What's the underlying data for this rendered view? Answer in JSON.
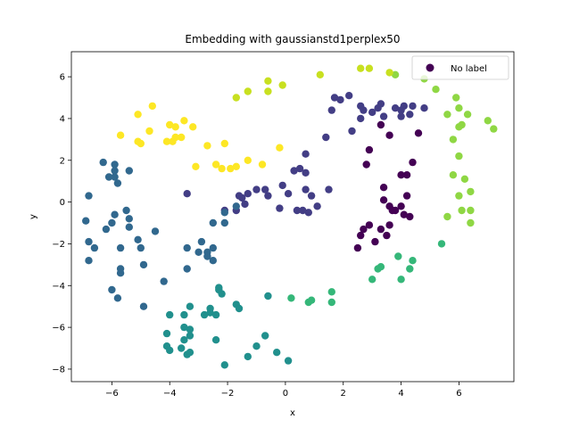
{
  "chart_data": {
    "type": "scatter",
    "title": "Embedding with gaussianstd1perplex50",
    "xlabel": "x",
    "ylabel": "y",
    "xlim": [
      -7.4,
      7.9
    ],
    "ylim": [
      -8.6,
      7.2
    ],
    "xticks": [
      -6,
      -4,
      -2,
      0,
      2,
      4,
      6
    ],
    "yticks": [
      -8,
      -6,
      -4,
      -2,
      0,
      2,
      4,
      6
    ],
    "tick_labels_x": [
      "−6",
      "−4",
      "−2",
      "0",
      "2",
      "4",
      "6"
    ],
    "tick_labels_y": [
      "−8",
      "−6",
      "−4",
      "−2",
      "0",
      "2",
      "4",
      "6"
    ],
    "grid": false,
    "legend": {
      "placement": "top-right",
      "entries": [
        "No label"
      ],
      "color": "#440154"
    },
    "colormap": "viridis",
    "series": [
      {
        "color": "#440154",
        "points": [
          [
            2.7,
            -1.3
          ],
          [
            3.1,
            -1.9
          ],
          [
            2.5,
            -2.2
          ],
          [
            2.9,
            -1.1
          ],
          [
            2.6,
            -1.6
          ],
          [
            3.3,
            -1.3
          ],
          [
            3.6,
            -1.1
          ],
          [
            3.5,
            -1.6
          ],
          [
            4.1,
            -0.6
          ],
          [
            4.3,
            -0.7
          ],
          [
            4.0,
            -0.2
          ],
          [
            4.2,
            0.3
          ],
          [
            3.8,
            -0.4
          ],
          [
            3.4,
            0.1
          ],
          [
            3.6,
            -0.2
          ],
          [
            3.7,
            -0.4
          ],
          [
            4.4,
            1.9
          ],
          [
            4.2,
            1.3
          ],
          [
            4.0,
            1.3
          ],
          [
            3.4,
            0.7
          ],
          [
            3.6,
            3.2
          ],
          [
            2.8,
            1.8
          ],
          [
            3.3,
            3.7
          ],
          [
            2.9,
            2.5
          ],
          [
            4.6,
            3.3
          ]
        ]
      },
      {
        "color": "#433e85",
        "points": [
          [
            1.7,
            5.0
          ],
          [
            1.9,
            4.9
          ],
          [
            1.6,
            4.4
          ],
          [
            2.2,
            5.1
          ],
          [
            2.6,
            4.6
          ],
          [
            2.7,
            4.4
          ],
          [
            2.6,
            4.0
          ],
          [
            3.0,
            4.3
          ],
          [
            3.3,
            4.7
          ],
          [
            3.2,
            4.5
          ],
          [
            3.4,
            4.1
          ],
          [
            3.8,
            4.5
          ],
          [
            4.1,
            4.6
          ],
          [
            4.0,
            4.4
          ],
          [
            4.3,
            4.2
          ],
          [
            4.0,
            4.1
          ],
          [
            4.4,
            4.6
          ],
          [
            4.8,
            4.5
          ],
          [
            2.3,
            3.4
          ],
          [
            1.4,
            3.1
          ],
          [
            0.7,
            2.3
          ],
          [
            0.5,
            1.6
          ],
          [
            0.3,
            1.5
          ],
          [
            0.7,
            1.4
          ],
          [
            0.7,
            0.6
          ],
          [
            0.9,
            0.3
          ],
          [
            0.6,
            -0.4
          ],
          [
            0.8,
            -0.5
          ],
          [
            1.1,
            -0.2
          ],
          [
            1.5,
            0.6
          ],
          [
            0.4,
            -0.4
          ],
          [
            0.1,
            0.4
          ],
          [
            -0.1,
            0.8
          ],
          [
            -0.2,
            -0.3
          ],
          [
            -0.6,
            0.3
          ],
          [
            -0.7,
            0.6
          ],
          [
            -1.0,
            0.6
          ],
          [
            -1.3,
            0.4
          ],
          [
            -1.5,
            0.2
          ],
          [
            -1.6,
            0.3
          ],
          [
            -1.4,
            -0.1
          ],
          [
            -1.7,
            -0.4
          ],
          [
            -2.1,
            -0.4
          ],
          [
            -3.4,
            0.4
          ]
        ]
      },
      {
        "color": "#31688e",
        "points": [
          [
            -6.3,
            1.9
          ],
          [
            -5.9,
            1.8
          ],
          [
            -5.9,
            1.5
          ],
          [
            -6.1,
            1.2
          ],
          [
            -5.8,
            0.9
          ],
          [
            -5.4,
            1.5
          ],
          [
            -5.9,
            1.2
          ],
          [
            -6.8,
            0.3
          ],
          [
            -6.9,
            -0.9
          ],
          [
            -6.8,
            -1.9
          ],
          [
            -6.6,
            -2.2
          ],
          [
            -6.8,
            -2.8
          ],
          [
            -6.2,
            -1.3
          ],
          [
            -6.0,
            -1.0
          ],
          [
            -5.9,
            -0.6
          ],
          [
            -5.5,
            -0.4
          ],
          [
            -5.4,
            -0.8
          ],
          [
            -5.4,
            -1.2
          ],
          [
            -5.7,
            -2.2
          ],
          [
            -5.1,
            -1.8
          ],
          [
            -4.5,
            -1.4
          ],
          [
            -5.0,
            -2.2
          ],
          [
            -4.9,
            -3.0
          ],
          [
            -5.7,
            -3.2
          ],
          [
            -5.7,
            -3.4
          ],
          [
            -6.0,
            -4.2
          ],
          [
            -5.8,
            -4.6
          ],
          [
            -4.9,
            -5.0
          ],
          [
            -4.2,
            -3.8
          ],
          [
            -3.4,
            -3.2
          ],
          [
            -3.4,
            -2.2
          ],
          [
            -3.0,
            -2.4
          ],
          [
            -2.9,
            -1.9
          ],
          [
            -2.7,
            -2.4
          ],
          [
            -2.7,
            -2.6
          ],
          [
            -2.5,
            -2.2
          ],
          [
            -2.5,
            -2.8
          ],
          [
            -2.5,
            -1.0
          ],
          [
            -2.1,
            -1.0
          ],
          [
            -2.1,
            -0.5
          ],
          [
            -1.7,
            -0.2
          ]
        ]
      },
      {
        "color": "#21908d",
        "points": [
          [
            -4.0,
            -5.4
          ],
          [
            -3.5,
            -5.4
          ],
          [
            -3.3,
            -5.0
          ],
          [
            -4.1,
            -6.3
          ],
          [
            -3.5,
            -6.0
          ],
          [
            -3.3,
            -6.4
          ],
          [
            -3.5,
            -6.6
          ],
          [
            -3.3,
            -6.1
          ],
          [
            -4.1,
            -6.9
          ],
          [
            -4.0,
            -7.1
          ],
          [
            -3.6,
            -7.0
          ],
          [
            -3.4,
            -7.3
          ],
          [
            -3.3,
            -7.2
          ],
          [
            -2.6,
            -5.1
          ],
          [
            -2.6,
            -5.3
          ],
          [
            -2.8,
            -5.4
          ],
          [
            -2.4,
            -5.4
          ],
          [
            -2.3,
            -4.1
          ],
          [
            -2.3,
            -4.2
          ],
          [
            -2.2,
            -4.4
          ],
          [
            -1.7,
            -4.9
          ],
          [
            -1.6,
            -5.1
          ],
          [
            -2.4,
            -6.6
          ],
          [
            -2.1,
            -7.8
          ],
          [
            -1.3,
            -7.4
          ],
          [
            -1.0,
            -6.9
          ],
          [
            -0.7,
            -6.4
          ],
          [
            -0.3,
            -7.2
          ],
          [
            0.1,
            -7.6
          ],
          [
            -0.6,
            -4.5
          ]
        ]
      },
      {
        "color": "#35b779",
        "points": [
          [
            0.2,
            -4.6
          ],
          [
            0.8,
            -4.8
          ],
          [
            0.9,
            -4.7
          ],
          [
            1.6,
            -4.8
          ],
          [
            1.6,
            -4.3
          ],
          [
            3.0,
            -3.7
          ],
          [
            3.2,
            -3.2
          ],
          [
            3.3,
            -3.1
          ],
          [
            4.0,
            -3.7
          ],
          [
            3.9,
            -2.6
          ],
          [
            4.3,
            -3.2
          ],
          [
            4.4,
            -2.8
          ],
          [
            5.4,
            -2.0
          ]
        ]
      },
      {
        "color": "#8fd744",
        "points": [
          [
            3.8,
            6.1
          ],
          [
            4.8,
            5.9
          ],
          [
            5.2,
            5.4
          ],
          [
            5.6,
            4.2
          ],
          [
            5.9,
            5.0
          ],
          [
            6.0,
            4.5
          ],
          [
            6.3,
            4.2
          ],
          [
            6.1,
            3.7
          ],
          [
            6.0,
            3.6
          ],
          [
            5.8,
            3.0
          ],
          [
            6.0,
            2.2
          ],
          [
            7.0,
            3.9
          ],
          [
            7.2,
            3.5
          ],
          [
            5.8,
            1.3
          ],
          [
            6.2,
            1.1
          ],
          [
            6.4,
            0.5
          ],
          [
            6.0,
            0.3
          ],
          [
            6.1,
            -0.4
          ],
          [
            6.4,
            -0.4
          ],
          [
            6.4,
            -1.0
          ],
          [
            5.6,
            -0.7
          ]
        ]
      },
      {
        "color": "#fde725",
        "points": [
          [
            -4.6,
            4.6
          ],
          [
            -5.1,
            4.2
          ],
          [
            -4.7,
            3.4
          ],
          [
            -4.0,
            3.7
          ],
          [
            -3.8,
            3.6
          ],
          [
            -3.5,
            3.9
          ],
          [
            -3.2,
            3.6
          ],
          [
            -3.8,
            3.1
          ],
          [
            -3.6,
            3.1
          ],
          [
            -3.9,
            2.9
          ],
          [
            -4.1,
            2.9
          ],
          [
            -5.1,
            2.9
          ],
          [
            -5.0,
            2.8
          ],
          [
            -5.7,
            3.2
          ],
          [
            -3.1,
            1.7
          ],
          [
            -2.7,
            2.7
          ],
          [
            -2.4,
            1.8
          ],
          [
            -2.1,
            2.8
          ],
          [
            -2.2,
            1.6
          ],
          [
            -1.9,
            1.6
          ],
          [
            -1.7,
            1.7
          ],
          [
            -1.3,
            2.0
          ],
          [
            -0.8,
            1.8
          ],
          [
            -0.2,
            2.6
          ]
        ]
      },
      {
        "color": "#c8e020",
        "points": [
          [
            -1.7,
            5.0
          ],
          [
            -1.3,
            5.3
          ],
          [
            -0.6,
            5.8
          ],
          [
            -0.6,
            5.3
          ],
          [
            -0.1,
            5.6
          ],
          [
            1.2,
            6.1
          ],
          [
            2.6,
            6.4
          ],
          [
            2.9,
            6.4
          ],
          [
            3.6,
            6.2
          ]
        ]
      }
    ]
  }
}
